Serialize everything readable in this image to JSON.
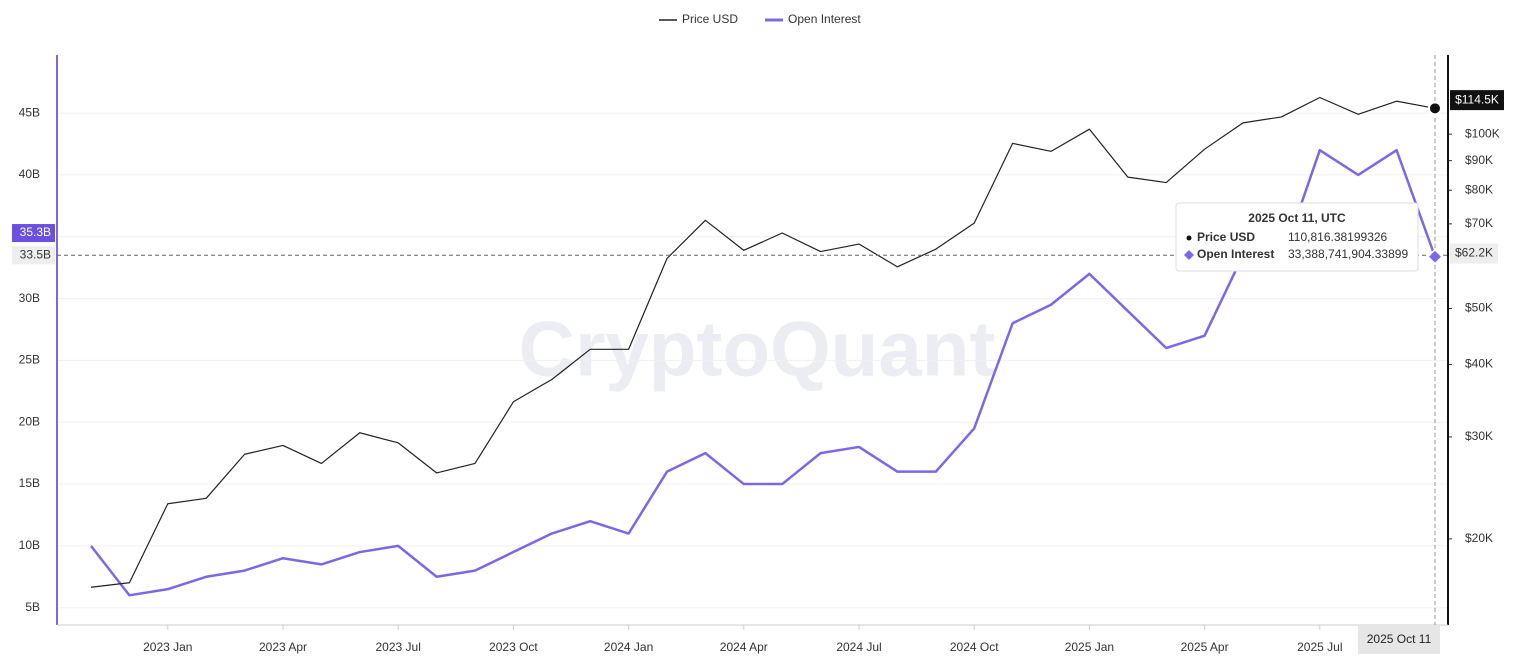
{
  "chart_data": {
    "type": "line",
    "watermark": "CryptoQuant",
    "categories": [
      null,
      null,
      "2023 Jan",
      null,
      null,
      "2023 Apr",
      null,
      null,
      "2023 Jul",
      null,
      null,
      "2023 Oct",
      null,
      null,
      "2024 Jan",
      null,
      null,
      "2024 Apr",
      null,
      null,
      "2024 Jul",
      null,
      null,
      "2024 Oct",
      null,
      null,
      "2025 Jan",
      null,
      null,
      "2025 Apr",
      null,
      null,
      "2025 Jul",
      null,
      null,
      null
    ],
    "series": [
      {
        "name": "Price USD",
        "color": "#222222",
        "axis": "y2",
        "values": [
          16500,
          16800,
          23000,
          23500,
          28000,
          29000,
          27000,
          30500,
          29300,
          26000,
          27000,
          34500,
          37700,
          42500,
          42500,
          61000,
          71000,
          63000,
          67500,
          62700,
          64600,
          59000,
          63300,
          70200,
          96400,
          93400,
          102000,
          84300,
          82500,
          94200,
          104600,
          107100,
          115700,
          108200,
          114000,
          110816.38199326
        ]
      },
      {
        "name": "Open Interest",
        "color": "#7b68e6",
        "axis": "y",
        "values": [
          10000000000,
          6000000000,
          6500000000,
          7500000000,
          8000000000,
          9000000000,
          8500000000,
          9500000000,
          10000000000,
          7500000000,
          8000000000,
          9500000000,
          11000000000,
          12000000000,
          11000000000,
          16000000000,
          17500000000,
          15000000000,
          15000000000,
          17500000000,
          18000000000,
          16000000000,
          16000000000,
          19500000000,
          28000000000,
          29500000000,
          32000000000,
          29000000000,
          26000000000,
          27000000000,
          33500000000,
          33000000000,
          42000000000,
          40000000000,
          42000000000,
          33388741904.33899
        ]
      }
    ],
    "ylim": [
      3600000000,
      49700000000
    ],
    "yticks": [
      {
        "value": 5000000000,
        "label": "5B"
      },
      {
        "value": 10000000000,
        "label": "10B"
      },
      {
        "value": 15000000000,
        "label": "15B"
      },
      {
        "value": 20000000000,
        "label": "20B"
      },
      {
        "value": 25000000000,
        "label": "25B"
      },
      {
        "value": 30000000000,
        "label": "30B"
      },
      {
        "value": 35000000000,
        "label": "35B"
      },
      {
        "value": 40000000000,
        "label": "40B"
      },
      {
        "value": 45000000000,
        "label": "45B"
      }
    ],
    "y2lim": [
      14200,
      137000
    ],
    "y2_log": true,
    "y2ticks": [
      {
        "value": 20000,
        "label": "$20K"
      },
      {
        "value": 30000,
        "label": "$30K"
      },
      {
        "value": 40000,
        "label": "$40K"
      },
      {
        "value": 50000,
        "label": "$50K"
      },
      {
        "value": 70000,
        "label": "$70K"
      },
      {
        "value": 80000,
        "label": "$80K"
      },
      {
        "value": 90000,
        "label": "$90K"
      },
      {
        "value": 100000,
        "label": "$100K"
      }
    ],
    "grid": true,
    "legend": "top",
    "last_markers": {
      "y": {
        "value": 35300000000,
        "label": "35.3B"
      },
      "y2": {
        "value": 114500,
        "label": "$114.5K"
      }
    },
    "crosshair": {
      "x_label": "2025 Oct 11",
      "y": {
        "value": 33500000000,
        "label": "33.5B"
      },
      "y2": {
        "value": 62200,
        "label": "$62.2K"
      }
    },
    "tooltip": {
      "title": "2025 Oct 11, UTC",
      "rows": [
        {
          "name": "Price USD",
          "label": "110,816.38199326"
        },
        {
          "name": "Open Interest",
          "label": "33,388,741,904.33899"
        }
      ]
    }
  }
}
